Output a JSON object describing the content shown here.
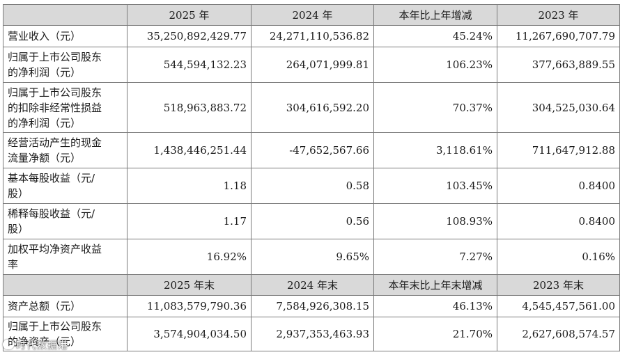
{
  "header1": {
    "corner": "",
    "cols": [
      "2025 年",
      "2024 年",
      "本年比上年增减",
      "2023 年"
    ]
  },
  "rows1": [
    {
      "label": [
        "营业收入（元）"
      ],
      "values": [
        "35,250,892,429.77",
        "24,271,110,536.82",
        "45.24%",
        "11,267,690,707.79"
      ]
    },
    {
      "label": [
        "归属于上市公司股东",
        "的净利润（元）"
      ],
      "values": [
        "544,594,132.23",
        "264,071,999.81",
        "106.23%",
        "377,663,889.55"
      ]
    },
    {
      "label": [
        "归属于上市公司股东",
        "的扣除非经常性损益",
        "的净利润（元）"
      ],
      "values": [
        "518,963,883.72",
        "304,616,592.20",
        "70.37%",
        "304,525,030.64"
      ]
    },
    {
      "label": [
        "经营活动产生的现金",
        "流量净额（元）"
      ],
      "values": [
        "1,438,446,251.44",
        "-47,652,567.66",
        "3,118.61%",
        "711,647,912.88"
      ]
    },
    {
      "label": [
        "基本每股收益（元/",
        "股）"
      ],
      "values": [
        "1.18",
        "0.58",
        "103.45%",
        "0.8400"
      ]
    },
    {
      "label": [
        "稀释每股收益（元/",
        "股）"
      ],
      "values": [
        "1.17",
        "0.56",
        "108.93%",
        "0.8400"
      ]
    },
    {
      "label": [
        "加权平均净资产收益",
        "率"
      ],
      "values": [
        "16.92%",
        "9.65%",
        "7.27%",
        "0.16%"
      ]
    }
  ],
  "header2": {
    "corner": "",
    "cols": [
      "2025 年末",
      "2024 年末",
      "本年末比上年末增减",
      "2023 年末"
    ]
  },
  "rows2": [
    {
      "label": [
        "资产总额（元）"
      ],
      "values": [
        "11,083,579,790.36",
        "7,584,926,308.15",
        "46.13%",
        "4,545,457,561.00"
      ]
    },
    {
      "label": [
        "归属于上市公司股东",
        "的净资产（元）"
      ],
      "values": [
        "3,574,904,034.50",
        "2,937,353,463.93",
        "21.70%",
        "2,627,608,574.57"
      ]
    }
  ],
  "watermark": {
    "text": "时代数据港",
    "icon": "eye-icon"
  }
}
